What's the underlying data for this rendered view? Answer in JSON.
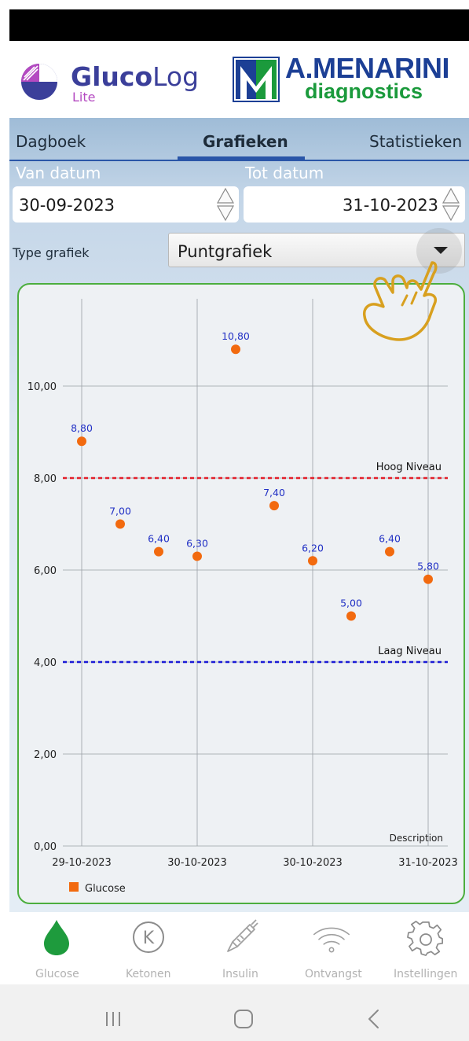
{
  "header": {
    "app_name_bold": "Gluco",
    "app_name_light": "Log",
    "app_sub": "Lite",
    "brand_name": "A.MENARINI",
    "brand_sub": "diagnostics",
    "brand_colors": {
      "glucolog_blue": "#3b3f9a",
      "glucolog_purple": "#b44ac1",
      "menarini_blue": "#1c3f95",
      "menarini_green": "#1b9a3c"
    }
  },
  "tabs": [
    {
      "label": "Dagboek",
      "active": false
    },
    {
      "label": "Grafieken",
      "active": true
    },
    {
      "label": "Statistieken",
      "active": false
    }
  ],
  "filters": {
    "van_label": "Van datum",
    "van_value": "30-09-2023",
    "tot_label": "Tot datum",
    "tot_value": "31-10-2023"
  },
  "chart_type": {
    "label": "Type grafiek",
    "value": "Puntgrafiek"
  },
  "chart_data": {
    "type": "scatter",
    "title": "",
    "xlabel": "Description",
    "ylabel": "",
    "ylim": [
      0,
      12
    ],
    "y_ticks": [
      "0,00",
      "2,00",
      "4,00",
      "6,00",
      "8,00",
      "10,00"
    ],
    "y_tick_values": [
      0,
      2,
      4,
      6,
      8,
      10
    ],
    "x_tick_labels": [
      "29-10-2023",
      "30-10-2023",
      "30-10-2023",
      "31-10-2023"
    ],
    "x_tick_index": [
      0,
      3,
      6,
      9
    ],
    "grid": true,
    "legend_position": "bottom-left",
    "series": [
      {
        "name": "Glucose",
        "color": "#f26a0f",
        "values": [
          8.8,
          7.0,
          6.4,
          6.3,
          10.8,
          7.4,
          6.2,
          5.0,
          6.4,
          5.8
        ],
        "labels": [
          "8,80",
          "7,00",
          "6,40",
          "6,30",
          "10,80",
          "7,40",
          "6,20",
          "5,00",
          "6,40",
          "5,80"
        ]
      }
    ],
    "reference_lines": [
      {
        "label": "Hoog Niveau",
        "value": 8,
        "color": "#e3202a"
      },
      {
        "label": "Laag Niveau",
        "value": 4,
        "color": "#1b1bd6"
      }
    ],
    "label_color": "#2231c5"
  },
  "bottom_nav": [
    {
      "label": "Glucose",
      "icon": "drop-icon",
      "active": true,
      "color": "#1e9b3d"
    },
    {
      "label": "Ketonen",
      "icon": "ketone-icon",
      "active": false
    },
    {
      "label": "Insulin",
      "icon": "syringe-icon",
      "active": false
    },
    {
      "label": "Ontvangst",
      "icon": "wifi-icon",
      "active": false
    },
    {
      "label": "Instellingen",
      "icon": "gear-icon",
      "active": false
    }
  ],
  "system_nav": [
    "recent-apps-icon",
    "home-icon",
    "back-icon"
  ]
}
